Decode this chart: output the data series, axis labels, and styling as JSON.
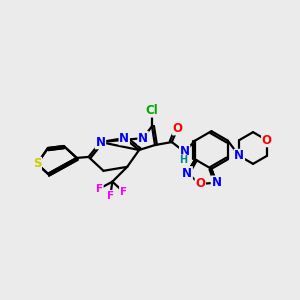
{
  "bg_color": "#ebebeb",
  "bond_color": "#000000",
  "bond_width": 1.6,
  "atom_colors": {
    "S": "#cccc00",
    "N": "#0000ff",
    "O": "#ff0000",
    "Cl": "#00aa00",
    "F": "#ff00ff",
    "H": "#008888",
    "C": "#000000"
  },
  "font_size": 8.5
}
